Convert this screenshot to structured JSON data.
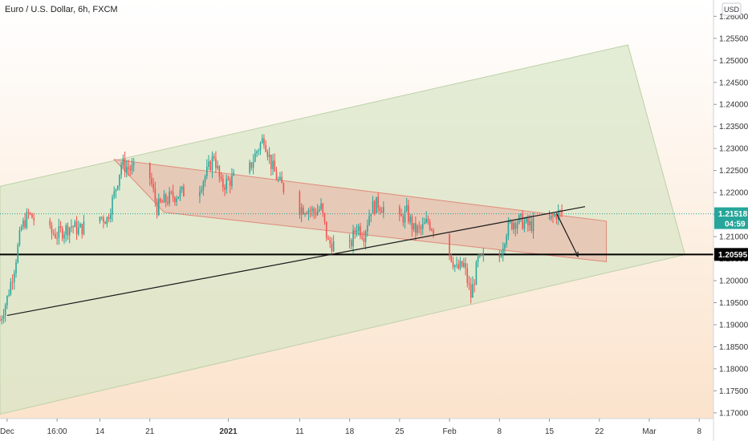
{
  "chart_data": {
    "type": "candlestick",
    "title": "Euro / U.S. Dollar, 6h, FXCM",
    "price_unit": "USD",
    "yaxis": {
      "ticks": [
        1.17,
        1.175,
        1.18,
        1.185,
        1.19,
        1.195,
        1.2,
        1.205,
        1.21,
        1.215,
        1.22,
        1.225,
        1.23,
        1.235,
        1.24,
        1.245,
        1.25,
        1.255,
        1.26
      ],
      "tick_labels": [
        "1.17000",
        "1.17500",
        "1.18000",
        "1.18500",
        "1.19000",
        "1.19500",
        "1.20000",
        "1.20500",
        "1.21000",
        "1.21500",
        "1.22000",
        "1.22500",
        "1.23000",
        "1.23500",
        "1.24000",
        "1.24500",
        "1.25000",
        "1.25500",
        "1.26000"
      ],
      "range": [
        1.1687,
        1.2637
      ]
    },
    "xaxis": {
      "range": [
        "2020-11-30",
        "2021-03-10"
      ],
      "ticks": [
        {
          "date": "2020-12-01",
          "label": "Dec",
          "bold": false
        },
        {
          "date": "2020-12-08",
          "label": "16:00",
          "bold": false
        },
        {
          "date": "2020-12-14",
          "label": "14",
          "bold": false
        },
        {
          "date": "2020-12-21",
          "label": "21",
          "bold": false
        },
        {
          "date": "2021-01-01",
          "label": "2021",
          "bold": true
        },
        {
          "date": "2021-01-11",
          "label": "11",
          "bold": false
        },
        {
          "date": "2021-01-18",
          "label": "18",
          "bold": false
        },
        {
          "date": "2021-01-25",
          "label": "25",
          "bold": false
        },
        {
          "date": "2021-02-01",
          "label": "Feb",
          "bold": false
        },
        {
          "date": "2021-02-08",
          "label": "8",
          "bold": false
        },
        {
          "date": "2021-02-15",
          "label": "15",
          "bold": false
        },
        {
          "date": "2021-02-22",
          "label": "22",
          "bold": false
        },
        {
          "date": "2021-03-01",
          "label": "Mar",
          "bold": false
        },
        {
          "date": "2021-03-08",
          "label": "8",
          "bold": false
        }
      ]
    },
    "price_path": [
      [
        "2020-11-30",
        1.191
      ],
      [
        "2020-12-01",
        1.196
      ],
      [
        "2020-12-02",
        1.203
      ],
      [
        "2020-12-03",
        1.212
      ],
      [
        "2020-12-04",
        1.215
      ],
      [
        "2020-12-07",
        1.211
      ],
      [
        "2020-12-08",
        1.2105
      ],
      [
        "2020-12-09",
        1.2115
      ],
      [
        "2020-12-10",
        1.2125
      ],
      [
        "2020-12-11",
        1.2115
      ],
      [
        "2020-12-14",
        1.2145
      ],
      [
        "2020-12-15",
        1.214
      ],
      [
        "2020-12-16",
        1.2195
      ],
      [
        "2020-12-17",
        1.2265
      ],
      [
        "2020-12-18",
        1.2255
      ],
      [
        "2020-12-21",
        1.2235
      ],
      [
        "2020-12-22",
        1.2165
      ],
      [
        "2020-12-23",
        1.218
      ],
      [
        "2020-12-24",
        1.219
      ],
      [
        "2020-12-28",
        1.2215
      ],
      [
        "2020-12-29",
        1.2245
      ],
      [
        "2020-12-30",
        1.2285
      ],
      [
        "2020-12-31",
        1.2215
      ],
      [
        "2021-01-04",
        1.2255
      ],
      [
        "2021-01-05",
        1.2295
      ],
      [
        "2021-01-06",
        1.2325
      ],
      [
        "2021-01-07",
        1.2265
      ],
      [
        "2021-01-08",
        1.2225
      ],
      [
        "2021-01-11",
        1.2165
      ],
      [
        "2021-01-12",
        1.2165
      ],
      [
        "2021-01-13",
        1.2155
      ],
      [
        "2021-01-14",
        1.2165
      ],
      [
        "2021-01-15",
        1.2085
      ],
      [
        "2021-01-18",
        1.2075
      ],
      [
        "2021-01-19",
        1.2125
      ],
      [
        "2021-01-20",
        1.2105
      ],
      [
        "2021-01-21",
        1.2165
      ],
      [
        "2021-01-22",
        1.2175
      ],
      [
        "2021-01-25",
        1.2135
      ],
      [
        "2021-01-26",
        1.2155
      ],
      [
        "2021-01-27",
        1.2115
      ],
      [
        "2021-01-28",
        1.2115
      ],
      [
        "2021-01-29",
        1.2135
      ],
      [
        "2021-02-01",
        1.2065
      ],
      [
        "2021-02-02",
        1.2025
      ],
      [
        "2021-02-03",
        1.2035
      ],
      [
        "2021-02-04",
        1.1965
      ],
      [
        "2021-02-05",
        1.2045
      ],
      [
        "2021-02-08",
        1.2055
      ],
      [
        "2021-02-09",
        1.2115
      ],
      [
        "2021-02-10",
        1.2135
      ],
      [
        "2021-02-11",
        1.2135
      ],
      [
        "2021-02-12",
        1.2125
      ],
      [
        "2021-02-15",
        1.2135
      ],
      [
        "2021-02-16",
        1.2152
      ]
    ],
    "annotations": {
      "outer_channel": {
        "label": "",
        "color": "#d7e6c6",
        "points": [
          [
            "2020-11-30",
            1.2214
          ],
          [
            "2021-02-26",
            1.2535
          ],
          [
            "2021-03-06",
            1.2059
          ],
          [
            "2020-11-30",
            1.1697
          ]
        ]
      },
      "inner_channel": {
        "label": "",
        "color": "#e8b4a6",
        "points": [
          [
            "2020-12-16",
            1.2275
          ],
          [
            "2021-02-23",
            1.2135
          ],
          [
            "2021-02-23",
            1.2043
          ],
          [
            "2020-12-23",
            1.2155
          ]
        ]
      },
      "trendline": {
        "from": [
          "2020-12-01",
          1.1921
        ],
        "to": [
          "2021-02-20",
          1.2168
        ]
      },
      "projection_arrow": {
        "from": [
          "2021-02-16",
          1.2153
        ],
        "to": [
          "2021-02-19",
          1.2055
        ]
      },
      "support_line": {
        "price": 1.20595,
        "label": "1.20595"
      },
      "current_price": {
        "price": 1.21518,
        "label": "1.21518",
        "countdown": "04:59"
      }
    },
    "colors": {
      "up": "#26a69a",
      "down": "#ef5350",
      "badge_blue": "#2962ff",
      "support": "#000000",
      "grid_bg_top": "#ffffff",
      "grid_bg_bottom": "#fbe3cc"
    }
  }
}
